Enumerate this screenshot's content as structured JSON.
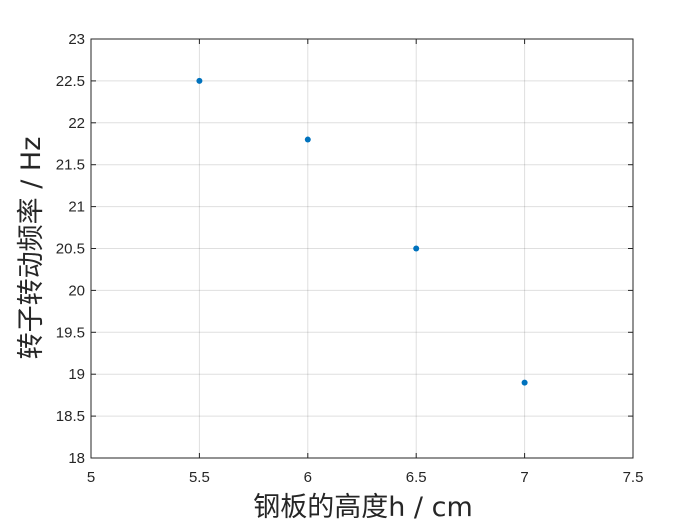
{
  "chart_data": {
    "type": "scatter",
    "title": "",
    "xlabel": "钢板的高度h / cm",
    "ylabel": "转子转动频率 / Hz",
    "xlim": [
      5,
      7.5
    ],
    "ylim": [
      18,
      23
    ],
    "x_ticks": [
      5,
      5.5,
      6,
      6.5,
      7,
      7.5
    ],
    "y_ticks": [
      18,
      18.5,
      19,
      19.5,
      20,
      20.5,
      21,
      21.5,
      22,
      22.5,
      23
    ],
    "x_tick_labels": [
      "5",
      "5.5",
      "6",
      "6.5",
      "7",
      "7.5"
    ],
    "y_tick_labels": [
      "18",
      "18.5",
      "19",
      "19.5",
      "20",
      "20.5",
      "21",
      "21.5",
      "22",
      "22.5",
      "23"
    ],
    "grid": true,
    "series": [
      {
        "x": [
          5.5,
          6,
          6.5,
          7
        ],
        "y": [
          22.5,
          21.8,
          20.5,
          18.9
        ],
        "color": "#0072BD"
      }
    ]
  }
}
